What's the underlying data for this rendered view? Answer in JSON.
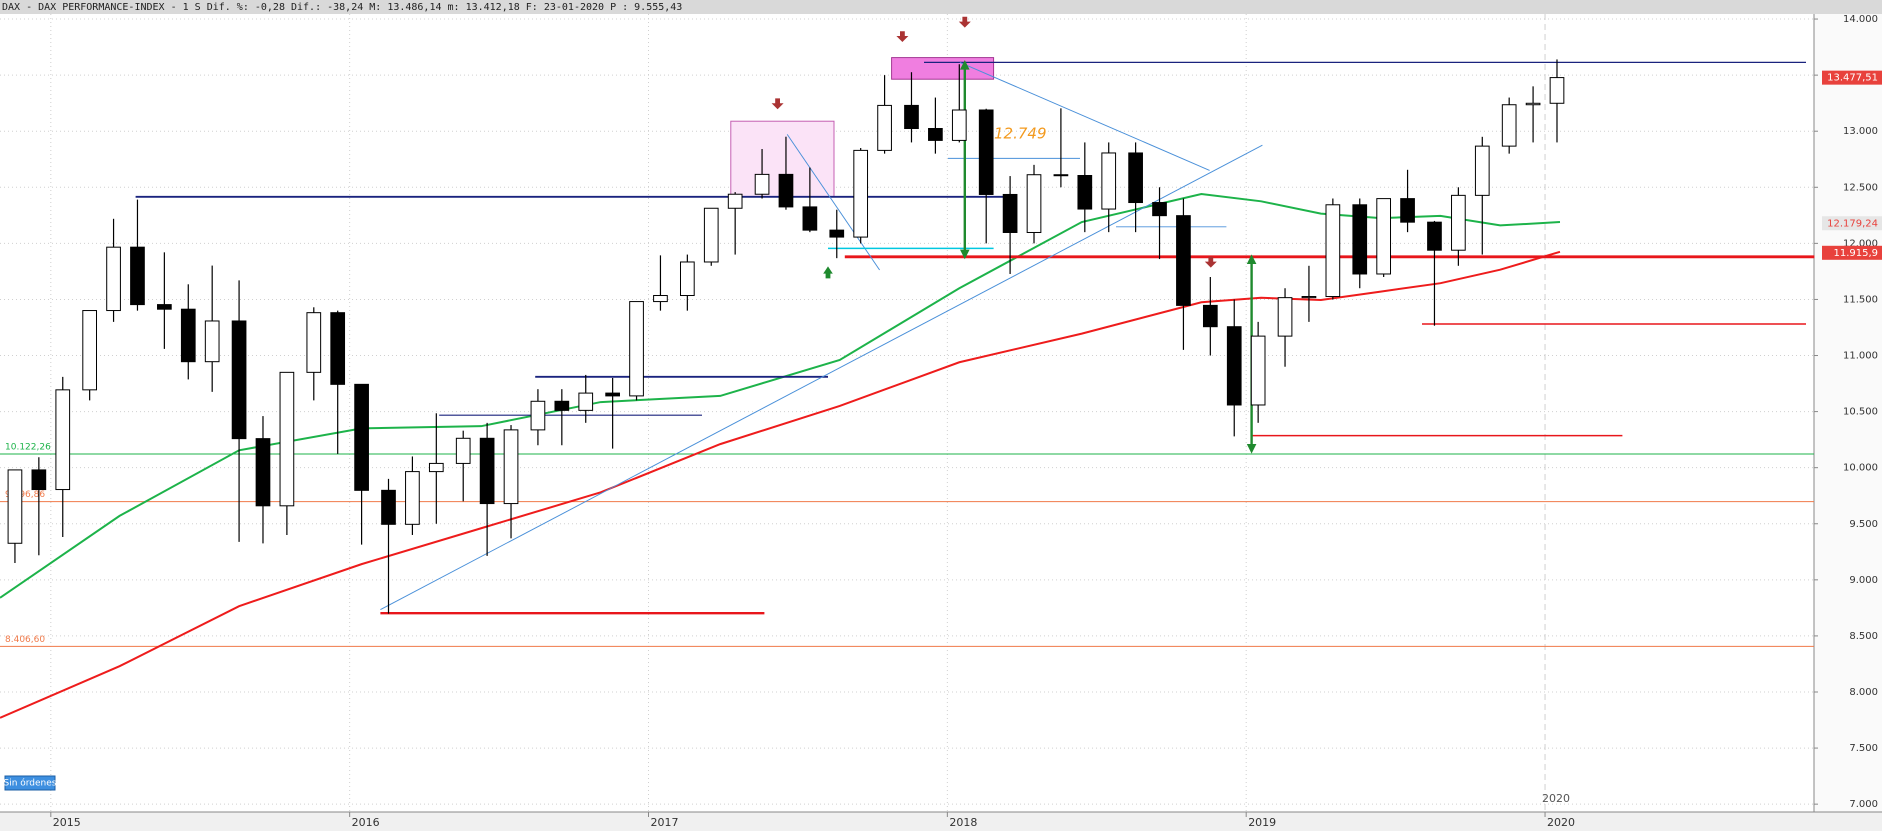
{
  "chart_data": {
    "type": "candlestick",
    "title": "DAX - DAX PERFORMANCE-INDEX -  1 S Dif. %: -0,28 Dif.: -38,24 M: 13.486,14 m: 13.412,18 F: 23-01-2020 P : 9.555,43",
    "x": [
      2014.88,
      2014.96,
      2015.04,
      2015.13,
      2015.21,
      2015.29,
      2015.38,
      2015.46,
      2015.54,
      2015.63,
      2015.71,
      2015.79,
      2015.88,
      2015.96,
      2016.04,
      2016.13,
      2016.21,
      2016.29,
      2016.38,
      2016.46,
      2016.54,
      2016.63,
      2016.71,
      2016.79,
      2016.88,
      2016.96,
      2017.04,
      2017.13,
      2017.21,
      2017.29,
      2017.38,
      2017.46,
      2017.54,
      2017.63,
      2017.71,
      2017.79,
      2017.88,
      2017.96,
      2018.04,
      2018.13,
      2018.21,
      2018.29,
      2018.38,
      2018.46,
      2018.54,
      2018.63,
      2018.71,
      2018.79,
      2018.88,
      2018.96,
      2019.04,
      2019.13,
      2019.21,
      2019.29,
      2019.38,
      2019.46,
      2019.54,
      2019.63,
      2019.71,
      2019.79,
      2019.88,
      2019.96,
      2020.04
    ],
    "open": [
      9326,
      9980,
      9805,
      10694,
      11401,
      11966,
      11454,
      11413,
      10945,
      11308,
      10259,
      9660,
      10850,
      11382,
      10743,
      9798,
      9495,
      9965,
      10038,
      10262,
      9680,
      10337,
      10592,
      10511,
      10665,
      10640,
      11481,
      11535,
      11834,
      12313,
      12438,
      12615,
      12325,
      12118,
      12056,
      12829,
      13230,
      13024,
      12918,
      13189,
      12436,
      12097,
      12612,
      12605,
      12306,
      12806,
      12364,
      12247,
      11447,
      11257,
      10559,
      11173,
      11516,
      11526,
      12344,
      11727,
      12399,
      12189,
      11939,
      12428,
      12867,
      13236,
      13249
    ],
    "high": [
      9980,
      10093,
      10810,
      11401,
      12219,
      12390,
      11920,
      11635,
      11802,
      11670,
      10460,
      10850,
      11430,
      11400,
      10743,
      9900,
      10100,
      10485,
      10330,
      10400,
      10380,
      10700,
      10700,
      10827,
      10800,
      11481,
      11893,
      11900,
      12313,
      12457,
      12841,
      12951,
      12676,
      12300,
      12850,
      13500,
      13526,
      13300,
      13597,
      13200,
      12600,
      12700,
      13204,
      12900,
      12900,
      12900,
      12500,
      12400,
      11700,
      11500,
      11300,
      11600,
      11800,
      12400,
      12400,
      12400,
      12656,
      12200,
      12500,
      12950,
      13300,
      13400,
      13640
    ],
    "low": [
      9150,
      9219,
      9382,
      10600,
      11300,
      11400,
      11059,
      10787,
      10676,
      9338,
      9325,
      9400,
      10600,
      10123,
      9314,
      8699,
      9400,
      9500,
      9700,
      9214,
      9370,
      10200,
      10200,
      10400,
      10170,
      10600,
      11400,
      11400,
      11800,
      11900,
      12400,
      12300,
      12100,
      11868,
      12000,
      12800,
      12900,
      12800,
      12900,
      12000,
      11727,
      12000,
      12500,
      12100,
      12100,
      12100,
      11860,
      11050,
      11000,
      10279,
      10400,
      10900,
      11300,
      11500,
      11600,
      11700,
      12100,
      11266,
      11800,
      11900,
      12800,
      12900,
      12900
    ],
    "close": [
      9980,
      9805,
      10694,
      11401,
      11966,
      11454,
      11413,
      10945,
      11308,
      10259,
      9660,
      10850,
      11382,
      10743,
      9798,
      9495,
      9965,
      10038,
      10262,
      9680,
      10337,
      10592,
      10511,
      10665,
      10640,
      11481,
      11535,
      11834,
      12313,
      12438,
      12615,
      12325,
      12118,
      12056,
      12829,
      13230,
      13024,
      12918,
      13189,
      12436,
      12097,
      12612,
      12605,
      12306,
      12806,
      12364,
      12247,
      11447,
      11257,
      10559,
      11173,
      11516,
      11526,
      12344,
      11727,
      12399,
      12189,
      11939,
      12428,
      12867,
      13236,
      13249,
      13478
    ],
    "up_color": "#ffffff",
    "down_color": "#000000",
    "moving_averages": [
      {
        "color": "#1db34a",
        "x": [
          2014.83,
          2015.23,
          2015.63,
          2016.04,
          2016.44,
          2016.84,
          2017.24,
          2017.64,
          2018.04,
          2018.45,
          2018.85,
          2019.05,
          2019.25,
          2019.45,
          2019.65,
          2019.85,
          2020.05
        ],
        "values": [
          8840,
          9570,
          10155,
          10350,
          10370,
          10585,
          10640,
          10960,
          11600,
          12190,
          12440,
          12375,
          12265,
          12225,
          12245,
          12160,
          12190
        ]
      },
      {
        "color": "#ee1c1c",
        "x": [
          2014.83,
          2015.23,
          2015.63,
          2016.04,
          2016.44,
          2016.84,
          2017.24,
          2017.64,
          2018.04,
          2018.45,
          2018.85,
          2019.05,
          2019.25,
          2019.45,
          2019.65,
          2019.85,
          2020.05
        ],
        "values": [
          7770,
          8230,
          8765,
          9140,
          9460,
          9780,
          10210,
          10550,
          10940,
          11195,
          11475,
          11515,
          11495,
          11570,
          11645,
          11765,
          11925
        ]
      }
    ],
    "hlines": [
      {
        "value": 10122.26,
        "label": "10.122,26",
        "color": "#1db34a"
      },
      {
        "value": 9696.86,
        "label": "9.696,86",
        "color": "#f07a4a"
      },
      {
        "value": 8406.6,
        "label": "8.406,60",
        "color": "#f07a4a"
      }
    ],
    "price_tags": [
      {
        "value": 13477.51,
        "label": "13.477,51",
        "color": "#e8413c",
        "text_color": "#ffffff"
      },
      {
        "value": 12179.24,
        "label": "12.179,24",
        "color": "#e6e6e6",
        "text_color": "#e8413c"
      },
      {
        "value": 11915.9,
        "label": "11.915,9",
        "color": "#e8413c",
        "text_color": "#ffffff"
      }
    ],
    "annotation": "12.749",
    "year_marker": "2020",
    "button": "Sin órdenes",
    "xlim": [
      2014.83,
      2020.9
    ],
    "xticks": [
      2015,
      2016,
      2017,
      2018,
      2019,
      2020
    ],
    "ylim": [
      6930,
      14045
    ],
    "yticks": [
      {
        "value": 7000,
        "label": "7.000"
      },
      {
        "value": 7500,
        "label": "7.500"
      },
      {
        "value": 8000,
        "label": "8.000"
      },
      {
        "value": 8500,
        "label": "8.500"
      },
      {
        "value": 9000,
        "label": "9.000"
      },
      {
        "value": 9500,
        "label": "9.500"
      },
      {
        "value": 10000,
        "label": "10.000"
      },
      {
        "value": 10500,
        "label": "10.500"
      },
      {
        "value": 11000,
        "label": "11.000"
      },
      {
        "value": 11500,
        "label": "11.500"
      },
      {
        "value": 12000,
        "label": "12.000"
      },
      {
        "value": 12500,
        "label": "12.500"
      },
      {
        "value": 13000,
        "label": "13.000"
      },
      {
        "value": 13500,
        "label": "13.500"
      },
      {
        "value": 14000,
        "label": "14.000"
      }
    ],
    "grid": true
  }
}
